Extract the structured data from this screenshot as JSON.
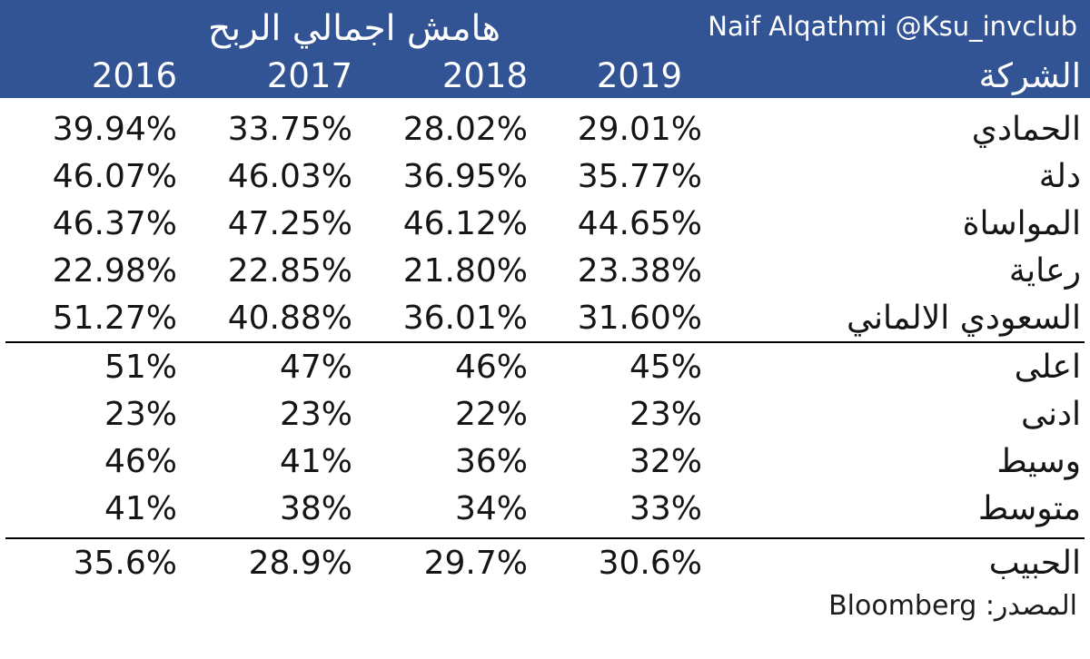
{
  "header": {
    "title": "هامش اجمالي الربح",
    "credit": "Naif Alqathmi @Ksu_invclub",
    "company_label": "الشركة",
    "years": [
      "2016",
      "2017",
      "2018",
      "2019"
    ]
  },
  "footer": {
    "source": "المصدر: Bloomberg"
  },
  "colors": {
    "header_bg": "#325494",
    "header_text": "#ffffff",
    "body_text": "#151515",
    "divider": "#000000"
  },
  "chart_data": {
    "type": "table",
    "title": "هامش اجمالي الربح",
    "columns": [
      "2016",
      "2017",
      "2018",
      "2019",
      "الشركة"
    ],
    "companies": [
      {
        "name": "الحمادي",
        "values": [
          "39.94%",
          "33.75%",
          "28.02%",
          "29.01%"
        ]
      },
      {
        "name": "دلة",
        "values": [
          "46.07%",
          "46.03%",
          "36.95%",
          "35.77%"
        ]
      },
      {
        "name": "المواساة",
        "values": [
          "46.37%",
          "47.25%",
          "46.12%",
          "44.65%"
        ]
      },
      {
        "name": "رعاية",
        "values": [
          "22.98%",
          "22.85%",
          "21.80%",
          "23.38%"
        ]
      },
      {
        "name": "السعودي الالماني",
        "values": [
          "51.27%",
          "40.88%",
          "36.01%",
          "31.60%"
        ]
      }
    ],
    "stats": [
      {
        "name": "اعلى",
        "values": [
          "51%",
          "47%",
          "46%",
          "45%"
        ]
      },
      {
        "name": "ادنى",
        "values": [
          "23%",
          "23%",
          "22%",
          "23%"
        ]
      },
      {
        "name": "وسيط",
        "values": [
          "46%",
          "41%",
          "36%",
          "32%"
        ]
      },
      {
        "name": "متوسط",
        "values": [
          "41%",
          "38%",
          "34%",
          "33%"
        ]
      }
    ],
    "extra_row": {
      "name": "الحبيب",
      "values": [
        "35.6%",
        "28.9%",
        "29.7%",
        "30.6%"
      ]
    },
    "source": "Bloomberg"
  }
}
